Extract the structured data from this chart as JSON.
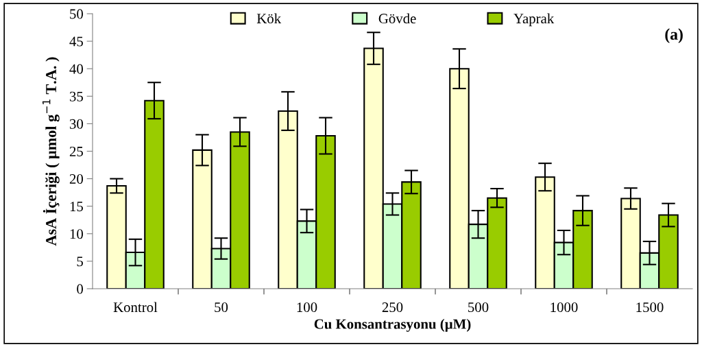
{
  "chart_data": {
    "type": "bar",
    "xlabel": "Cu Konsantrasyonu (µM)",
    "ylabel": "AsA İçeriği ( µmol g$^{−1}$ T.A. )",
    "categories": [
      "Kontrol",
      "50",
      "100",
      "250",
      "500",
      "1000",
      "1500"
    ],
    "series": [
      {
        "name": "Kök",
        "color": "#ffffcc",
        "values": [
          18.7,
          25.2,
          32.3,
          43.7,
          40.0,
          20.3,
          16.4
        ],
        "errors": [
          1.3,
          2.8,
          3.5,
          2.9,
          3.6,
          2.5,
          1.9
        ]
      },
      {
        "name": "Gövde",
        "color": "#ccffcc",
        "values": [
          6.6,
          7.3,
          12.3,
          15.4,
          11.7,
          8.4,
          6.5
        ],
        "errors": [
          2.4,
          1.9,
          2.1,
          2.0,
          2.5,
          2.2,
          2.1
        ]
      },
      {
        "name": "Yaprak",
        "color": "#99cc00",
        "values": [
          34.2,
          28.5,
          27.8,
          19.4,
          16.5,
          14.2,
          13.4
        ],
        "errors": [
          3.3,
          2.6,
          3.3,
          2.1,
          1.7,
          2.7,
          2.1
        ]
      }
    ],
    "ylim": [
      0,
      50
    ],
    "yticks": [
      0,
      5,
      10,
      15,
      20,
      25,
      30,
      35,
      40,
      45,
      50
    ],
    "grid": false,
    "legend": "top",
    "annotations": [
      "(a)"
    ]
  }
}
